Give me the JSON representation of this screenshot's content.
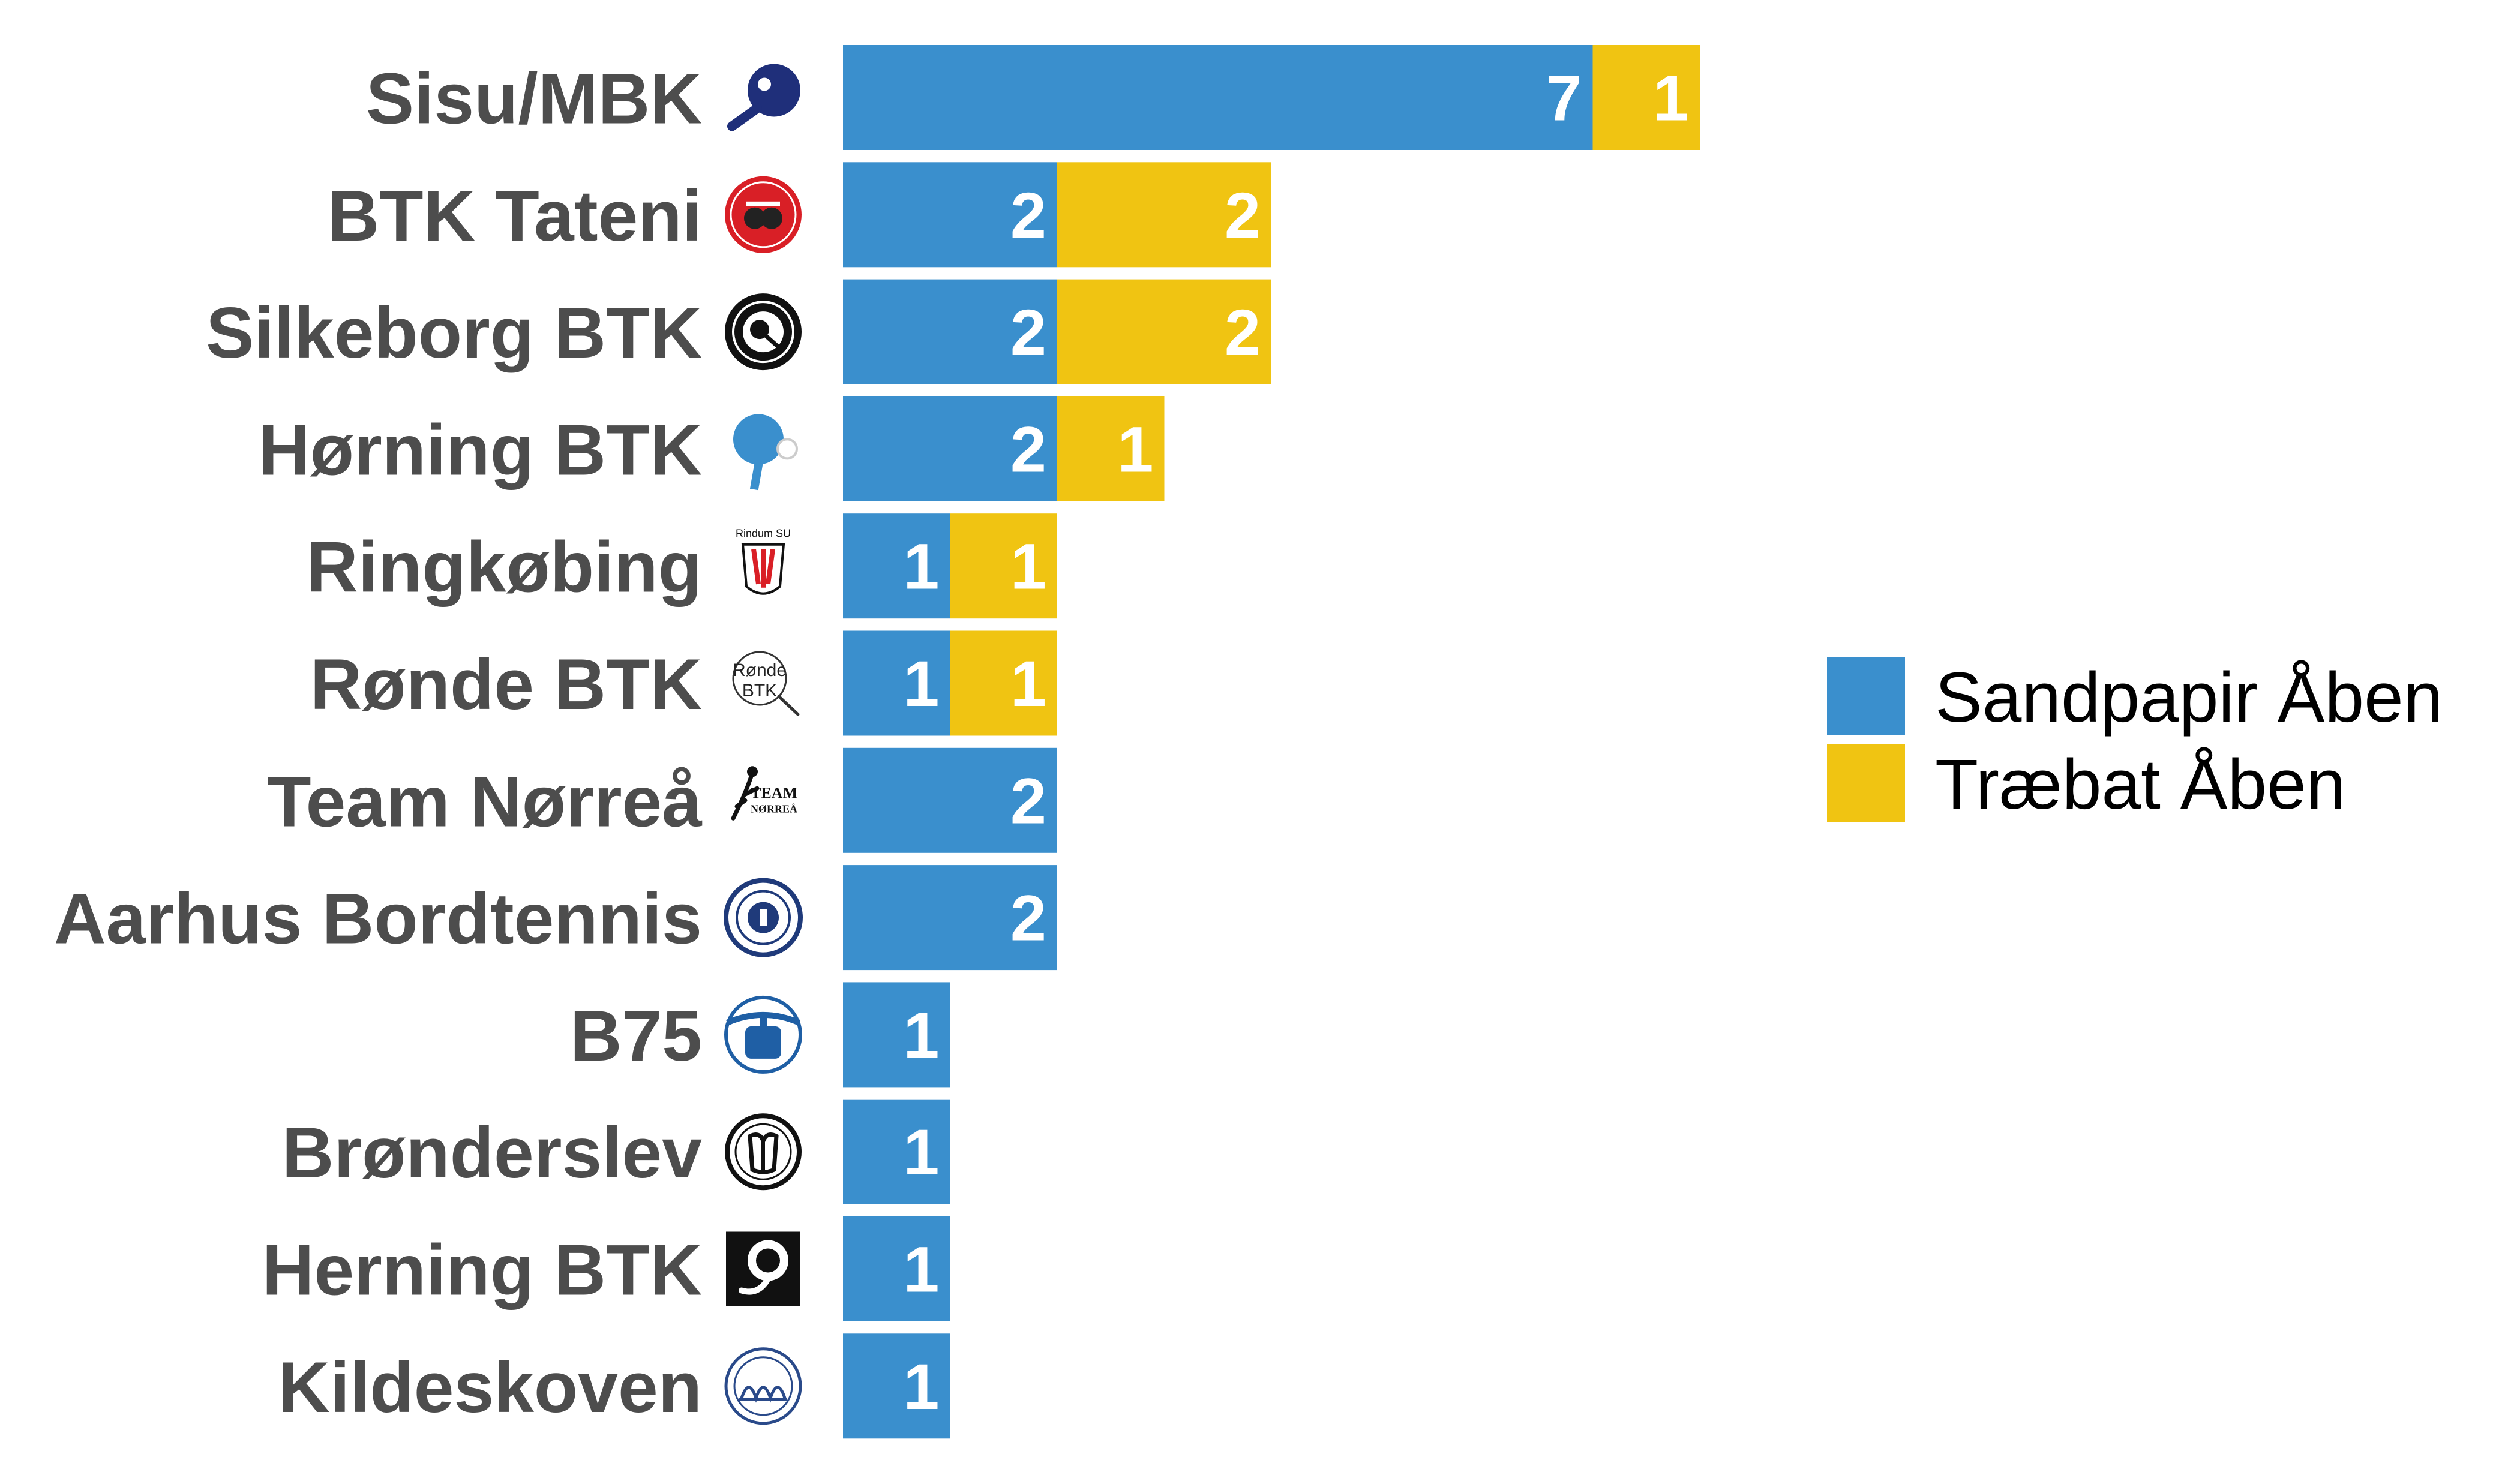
{
  "chart_data": {
    "type": "bar",
    "orientation": "horizontal",
    "stacked": true,
    "categories": [
      "Sisu/MBK",
      "BTK Tateni",
      "Silkeborg BTK",
      "Hørning BTK",
      "Ringkøbing",
      "Rønde BTK",
      "Team Nørreå",
      "Aarhus Bordtennis",
      "B75",
      "Brønderslev",
      "Herning BTK",
      "Kildeskoven"
    ],
    "series": [
      {
        "name": "Sandpapir Åben",
        "color": "#3a8fcd",
        "values": [
          7,
          2,
          2,
          2,
          1,
          1,
          2,
          2,
          1,
          1,
          1,
          1
        ]
      },
      {
        "name": "Træbat Åben",
        "color": "#f0c412",
        "values": [
          1,
          2,
          2,
          1,
          1,
          1,
          0,
          0,
          0,
          0,
          0,
          0
        ]
      }
    ],
    "logos": [
      "paddle-icon-navy",
      "tateni-logo",
      "silkeborg-logo",
      "paddle-icon-blue",
      "ringkobing-logo",
      "ronde-logo",
      "team-norrea-logo",
      "aarhus-logo",
      "b75-logo",
      "bronderslev-logo",
      "herning-logo",
      "kildeskoven-logo"
    ],
    "logo_texts": {
      "ringkobing": "Rindum SU",
      "ronde": [
        "Rønde",
        "BTK"
      ],
      "team_norrea": [
        "TEAM",
        "NØRREÅ"
      ]
    },
    "legend_position": "right",
    "grid": false,
    "xlim": [
      0,
      8
    ]
  }
}
